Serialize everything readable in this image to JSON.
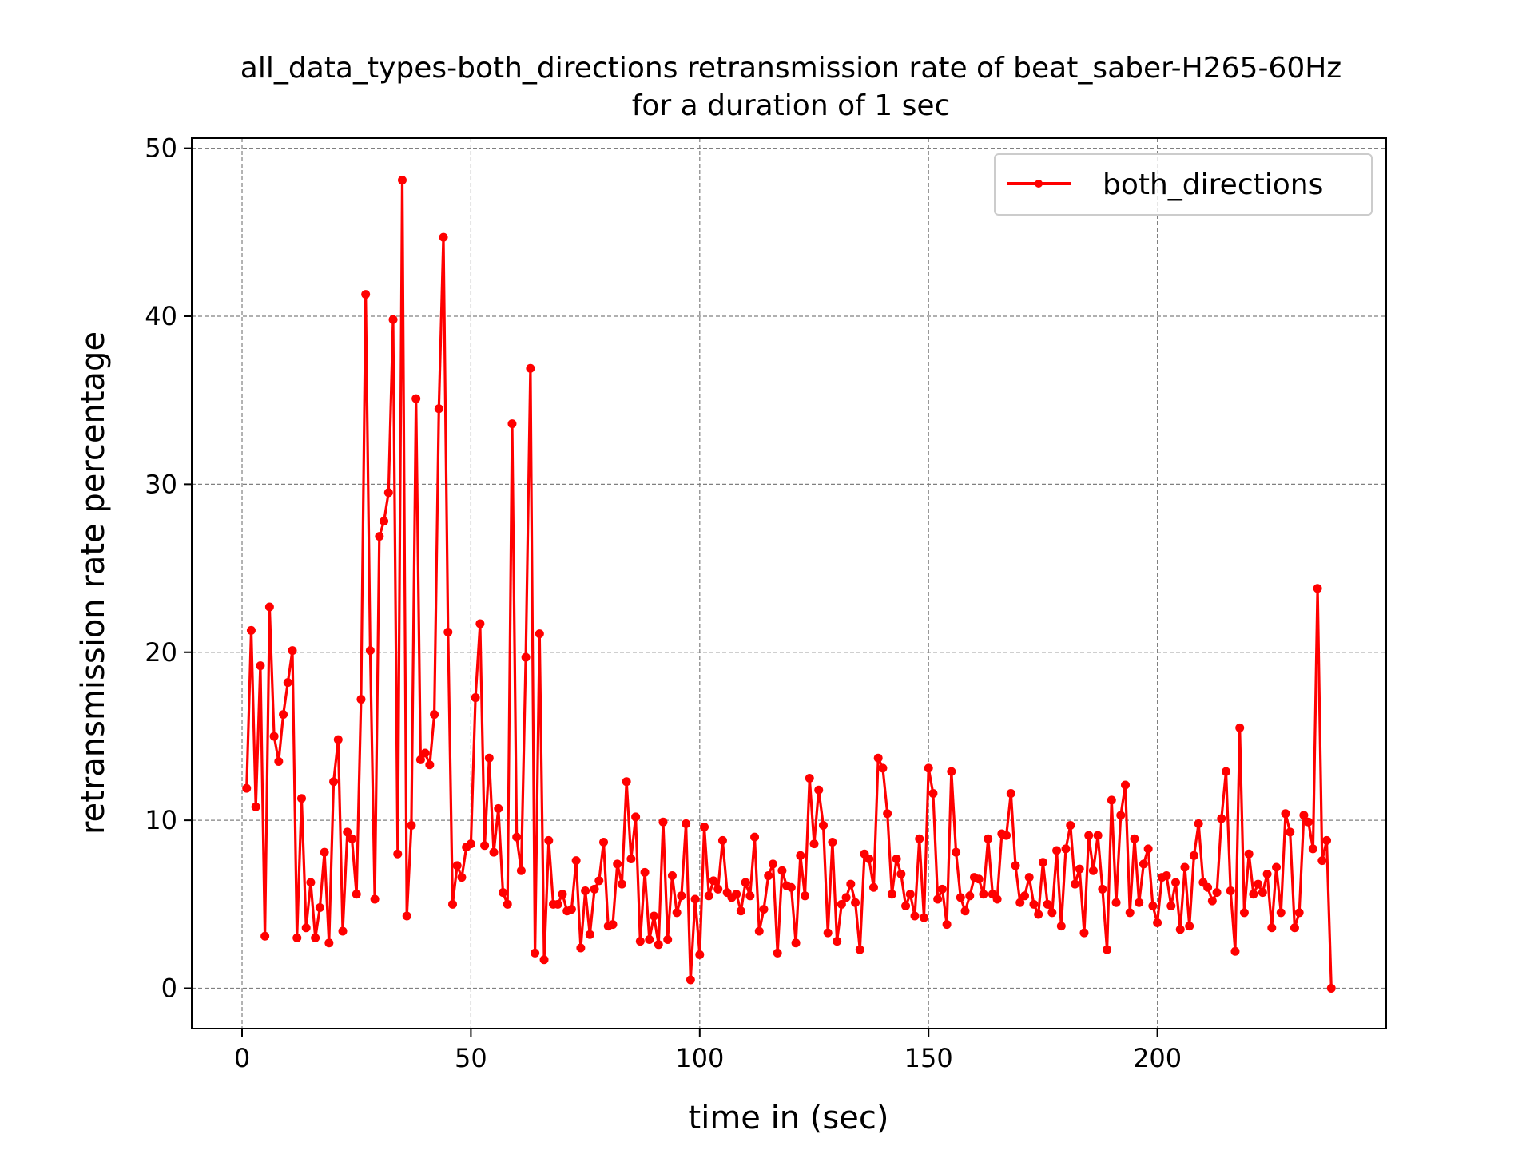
{
  "chart_data": {
    "type": "line",
    "title_line1": "all_data_types-both_directions retransmission rate of beat_saber-H265-60Hz",
    "title_line2": "for a duration of 1 sec",
    "xlabel": "time in (sec)",
    "ylabel": "retransmission rate percentage",
    "xlim": [
      -11,
      250
    ],
    "ylim": [
      -2.4,
      50.6
    ],
    "xticks": [
      0,
      50,
      100,
      150,
      200
    ],
    "yticks": [
      0,
      10,
      20,
      30,
      40,
      50
    ],
    "grid": true,
    "legend_position": "top-right",
    "colors": {
      "series": "#ff0000",
      "grid": "#808080",
      "axis": "#000000"
    },
    "series": [
      {
        "name": "both_directions",
        "x": [
          1,
          2,
          3,
          4,
          5,
          6,
          7,
          8,
          9,
          10,
          11,
          12,
          13,
          14,
          15,
          16,
          17,
          18,
          19,
          20,
          21,
          22,
          23,
          24,
          25,
          26,
          27,
          28,
          29,
          30,
          31,
          32,
          33,
          34,
          35,
          36,
          37,
          38,
          39,
          40,
          41,
          42,
          43,
          44,
          45,
          46,
          47,
          48,
          49,
          50,
          51,
          52,
          53,
          54,
          55,
          56,
          57,
          58,
          59,
          60,
          61,
          62,
          63,
          64,
          65,
          66,
          67,
          68,
          69,
          70,
          71,
          72,
          73,
          74,
          75,
          76,
          77,
          78,
          79,
          80,
          81,
          82,
          83,
          84,
          85,
          86,
          87,
          88,
          89,
          90,
          91,
          92,
          93,
          94,
          95,
          96,
          97,
          98,
          99,
          100,
          101,
          102,
          103,
          104,
          105,
          106,
          107,
          108,
          109,
          110,
          111,
          112,
          113,
          114,
          115,
          116,
          117,
          118,
          119,
          120,
          121,
          122,
          123,
          124,
          125,
          126,
          127,
          128,
          129,
          130,
          131,
          132,
          133,
          134,
          135,
          136,
          137,
          138,
          139,
          140,
          141,
          142,
          143,
          144,
          145,
          146,
          147,
          148,
          149,
          150,
          151,
          152,
          153,
          154,
          155,
          156,
          157,
          158,
          159,
          160,
          161,
          162,
          163,
          164,
          165,
          166,
          167,
          168,
          169,
          170,
          171,
          172,
          173,
          174,
          175,
          176,
          177,
          178,
          179,
          180,
          181,
          182,
          183,
          184,
          185,
          186,
          187,
          188,
          189,
          190,
          191,
          192,
          193,
          194,
          195,
          196,
          197,
          198,
          199,
          200,
          201,
          202,
          203,
          204,
          205,
          206,
          207,
          208,
          209,
          210,
          211,
          212,
          213,
          214,
          215,
          216,
          217,
          218,
          219,
          220,
          221,
          222,
          223,
          224,
          225,
          226,
          227,
          228,
          229,
          230,
          231,
          232,
          233,
          234,
          235,
          236,
          237,
          238
        ],
        "values": [
          11.9,
          21.3,
          10.8,
          19.2,
          3.1,
          22.7,
          15.0,
          13.5,
          16.3,
          18.2,
          20.1,
          3.0,
          11.3,
          3.6,
          6.3,
          3.0,
          4.8,
          8.1,
          2.7,
          12.3,
          14.8,
          3.4,
          9.3,
          8.9,
          5.6,
          17.2,
          41.3,
          20.1,
          5.3,
          26.9,
          27.8,
          29.5,
          39.8,
          8.0,
          48.1,
          4.3,
          9.7,
          35.1,
          13.6,
          14.0,
          13.3,
          16.3,
          34.5,
          44.7,
          21.2,
          5.0,
          7.3,
          6.6,
          8.4,
          8.6,
          17.3,
          21.7,
          8.5,
          13.7,
          8.1,
          10.7,
          5.7,
          5.0,
          33.6,
          9.0,
          7.0,
          19.7,
          36.9,
          2.1,
          21.1,
          1.7,
          8.8,
          5.0,
          5.0,
          5.6,
          4.6,
          4.7,
          7.6,
          2.4,
          5.8,
          3.2,
          5.9,
          6.4,
          8.7,
          3.7,
          3.8,
          7.4,
          6.2,
          12.3,
          7.7,
          10.2,
          2.8,
          6.9,
          2.9,
          4.3,
          2.6,
          9.9,
          2.9,
          6.7,
          4.5,
          5.5,
          9.8,
          0.5,
          5.3,
          2.0,
          9.6,
          5.5,
          6.4,
          5.9,
          8.8,
          5.7,
          5.4,
          5.6,
          4.6,
          6.3,
          5.5,
          9.0,
          3.4,
          4.7,
          6.7,
          7.4,
          2.1,
          7.0,
          6.1,
          6.0,
          2.7,
          7.9,
          5.5,
          12.5,
          8.6,
          11.8,
          9.7,
          3.3,
          8.7,
          2.8,
          5.0,
          5.4,
          6.2,
          5.1,
          2.3,
          8.0,
          7.7,
          6.0,
          13.7,
          13.1,
          10.4,
          5.6,
          7.7,
          6.8,
          4.9,
          5.6,
          4.3,
          8.9,
          4.2,
          13.1,
          11.6,
          5.3,
          5.9,
          3.8,
          12.9,
          8.1,
          5.4,
          4.6,
          5.5,
          6.6,
          6.5,
          5.6,
          8.9,
          5.6,
          5.3,
          9.2,
          9.1,
          11.6,
          7.3,
          5.1,
          5.5,
          6.6,
          5.0,
          4.4,
          7.5,
          5.0,
          4.5,
          8.2,
          3.7,
          8.3,
          9.7,
          6.2,
          7.1,
          3.3,
          9.1,
          7.0,
          9.1,
          5.9,
          2.3,
          11.2,
          5.1,
          10.3,
          12.1,
          4.5,
          8.9,
          5.1,
          7.4,
          8.3,
          4.9,
          3.9,
          6.6,
          6.7,
          4.9,
          6.3,
          3.5,
          7.2,
          3.7,
          7.9,
          9.8,
          6.3,
          6.0,
          5.2,
          5.7,
          10.1,
          12.9,
          5.8,
          2.2,
          15.5,
          4.5,
          8.0,
          5.6,
          6.2,
          5.7,
          6.8,
          3.6,
          7.2,
          4.5,
          10.4,
          9.3,
          3.6,
          4.5,
          10.3,
          9.9,
          8.3,
          23.8,
          7.6,
          8.8,
          0.0
        ]
      }
    ]
  }
}
